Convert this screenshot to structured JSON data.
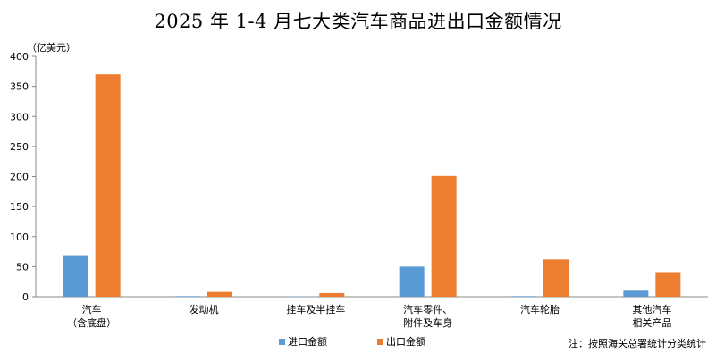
{
  "chart_data": {
    "type": "bar",
    "title": "2025 年 1-4 月七大类汽车商品进出口金额情况",
    "unit_label": "（亿美元）",
    "categories": [
      [
        "汽车",
        "（含底盘）"
      ],
      [
        "发动机"
      ],
      [
        "挂车及半挂车"
      ],
      [
        "汽车零件、",
        "附件及车身"
      ],
      [
        "汽车轮胎"
      ],
      [
        "其他汽车",
        "相关产品"
      ]
    ],
    "series": [
      {
        "name": "进口金额",
        "color": "#5B9BD5",
        "values": [
          69,
          1,
          0.5,
          50,
          1,
          10
        ]
      },
      {
        "name": "出口金额",
        "color": "#ED7D31",
        "values": [
          370,
          8,
          6,
          201,
          62,
          41
        ]
      }
    ],
    "ylim": [
      0,
      400
    ],
    "yticks": [
      0,
      50,
      100,
      150,
      200,
      250,
      300,
      350,
      400
    ],
    "grid": false,
    "legend": "bottom",
    "note": "注：按照海关总署统计分类统计"
  }
}
